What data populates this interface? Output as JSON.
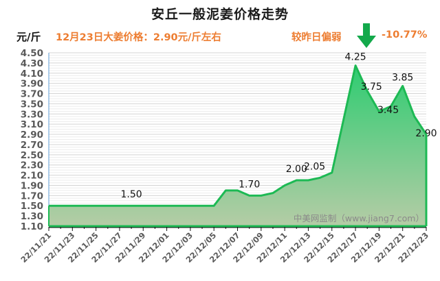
{
  "header": {
    "title": "安丘一般泥姜价格走势",
    "unit": "元/斤",
    "price_note": "12月23日大姜价格：2.90元/斤左右",
    "compare_note": "较昨日偏弱",
    "change_pct": "-10.77%",
    "trend_icon": "down-arrow-icon"
  },
  "colors": {
    "line": "#1db954",
    "fill_top": "#2ecc71",
    "fill_bottom": "#b5cca6",
    "accent": "#ed7d31",
    "arrow": "#13a94b"
  },
  "watermark": "中美网监制（www.jiang7.com）",
  "chart_data": {
    "type": "area",
    "title": "安丘一般泥姜价格走势",
    "xlabel": "",
    "ylabel": "元/斤",
    "ylim": [
      1.1,
      4.5
    ],
    "yticks": [
      "4.50",
      "4.30",
      "4.10",
      "3.90",
      "3.70",
      "3.50",
      "3.30",
      "3.10",
      "2.90",
      "2.70",
      "2.50",
      "2.30",
      "2.10",
      "1.90",
      "1.70",
      "1.50",
      "1.30",
      "1.10"
    ],
    "xtick_labels": [
      "22/11/21",
      "22/11/23",
      "22/11/25",
      "22/11/27",
      "22/11/29",
      "22/12/01",
      "22/12/03",
      "22/12/05",
      "22/12/07",
      "22/12/09",
      "22/12/11",
      "22/12/13",
      "22/12/15",
      "22/12/17",
      "22/12/19",
      "22/12/21",
      "22/12/23"
    ],
    "grid": true,
    "legend": "none",
    "x": [
      "22/11/21",
      "22/11/22",
      "22/11/23",
      "22/11/24",
      "22/11/25",
      "22/11/26",
      "22/11/27",
      "22/11/28",
      "22/11/29",
      "22/11/30",
      "22/12/01",
      "22/12/02",
      "22/12/03",
      "22/12/04",
      "22/12/05",
      "22/12/06",
      "22/12/07",
      "22/12/08",
      "22/12/09",
      "22/12/10",
      "22/12/11",
      "22/12/12",
      "22/12/13",
      "22/12/14",
      "22/12/15",
      "22/12/16",
      "22/12/17",
      "22/12/18",
      "22/12/19",
      "22/12/20",
      "22/12/21",
      "22/12/22",
      "22/12/23"
    ],
    "values": [
      1.5,
      1.5,
      1.5,
      1.5,
      1.5,
      1.5,
      1.5,
      1.5,
      1.5,
      1.5,
      1.5,
      1.5,
      1.5,
      1.5,
      1.5,
      1.8,
      1.8,
      1.7,
      1.7,
      1.75,
      1.9,
      2.0,
      2.0,
      2.05,
      2.15,
      3.2,
      4.25,
      3.75,
      3.35,
      3.45,
      3.85,
      3.25,
      2.9
    ],
    "data_labels": [
      {
        "index": 7,
        "text": "1.50"
      },
      {
        "index": 17,
        "text": "1.70"
      },
      {
        "index": 21,
        "text": "2.00"
      },
      {
        "index": 23,
        "text": "2.05"
      },
      {
        "index": 26,
        "text": "4.25"
      },
      {
        "index": 27,
        "text": "3.75"
      },
      {
        "index": 29,
        "text": "3.45"
      },
      {
        "index": 30,
        "text": "3.85"
      },
      {
        "index": 32,
        "text": "2.90"
      }
    ]
  }
}
